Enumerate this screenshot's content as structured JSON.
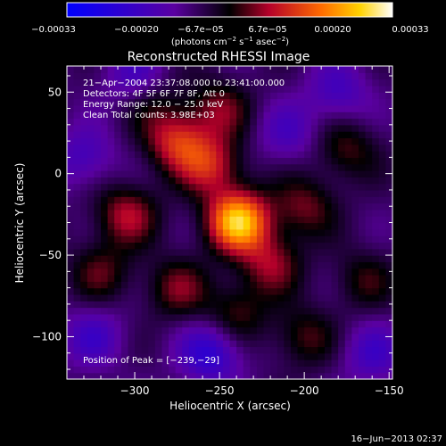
{
  "colorbar": {
    "ticks": [
      "−0.00033",
      "−0.00020",
      "−6.7e−05",
      "6.7e−05",
      "0.00020",
      "0.00033"
    ],
    "unit_label": "(photons cm",
    "unit_exp1": "−2",
    "unit_mid": " s",
    "unit_exp2": "−1",
    "unit_end": " asec",
    "unit_exp3": "−2",
    "unit_close": ")"
  },
  "image": {
    "title": "Reconstructed RHESSI Image",
    "info_lines": [
      "21−Apr−2004 23:37:08.000 to 23:41:00.000",
      "Detectors: 4F 5F 6F 7F 8F, Att 0",
      "Energy Range: 12.0 − 25.0 keV",
      "Clean      Total counts: 3.98E+03"
    ],
    "peak_label": "Position of Peak = [−239,−29]",
    "footer_date": "16−Jun−2013 02:37"
  },
  "chart_data": {
    "type": "heatmap",
    "title": "Reconstructed RHESSI Image",
    "xlabel": "Heliocentric X (arcsec)",
    "ylabel": "Heliocentric Y (arcsec)",
    "xlim": [
      -340,
      -148
    ],
    "ylim": [
      -126,
      66
    ],
    "xticks": [
      -300,
      -250,
      -200,
      -150
    ],
    "yticks": [
      50,
      0,
      -50,
      -100
    ],
    "xtick_labels": [
      "−300",
      "−250",
      "−200",
      "−150"
    ],
    "ytick_labels": [
      "50",
      "0",
      "−50",
      "−100"
    ],
    "colorbar_range": [
      -0.00033,
      0.00033
    ],
    "colormap": [
      "#0000ff",
      "#5a00a0",
      "#000000",
      "#b4002a",
      "#ff6a00",
      "#ffd200",
      "#ffffff"
    ],
    "peak": {
      "x": -239,
      "y": -29
    },
    "blobs": [
      {
        "x": -239,
        "y": -29,
        "amp": 1.0
      },
      {
        "x": -255,
        "y": 5,
        "amp": 0.5
      },
      {
        "x": -275,
        "y": 20,
        "amp": 0.55
      },
      {
        "x": -250,
        "y": 40,
        "amp": 0.35
      },
      {
        "x": -305,
        "y": -25,
        "amp": 0.45
      },
      {
        "x": -220,
        "y": -55,
        "amp": 0.4
      },
      {
        "x": -200,
        "y": -20,
        "amp": 0.35
      },
      {
        "x": -175,
        "y": 15,
        "amp": 0.3
      },
      {
        "x": -275,
        "y": -70,
        "amp": 0.35
      },
      {
        "x": -240,
        "y": -85,
        "amp": 0.3
      },
      {
        "x": -320,
        "y": -60,
        "amp": 0.3
      },
      {
        "x": -200,
        "y": -100,
        "amp": 0.3
      },
      {
        "x": -165,
        "y": -65,
        "amp": 0.25
      },
      {
        "x": -290,
        "y": 45,
        "amp": 0.2
      },
      {
        "x": -255,
        "y": -110,
        "amp": -0.45
      },
      {
        "x": -300,
        "y": 60,
        "amp": -0.3
      },
      {
        "x": -180,
        "y": 50,
        "amp": -0.3
      },
      {
        "x": -160,
        "y": -110,
        "amp": -0.3
      },
      {
        "x": -330,
        "y": 10,
        "amp": -0.3
      },
      {
        "x": -210,
        "y": 25,
        "amp": -0.25
      },
      {
        "x": -325,
        "y": -100,
        "amp": -0.3
      }
    ]
  }
}
